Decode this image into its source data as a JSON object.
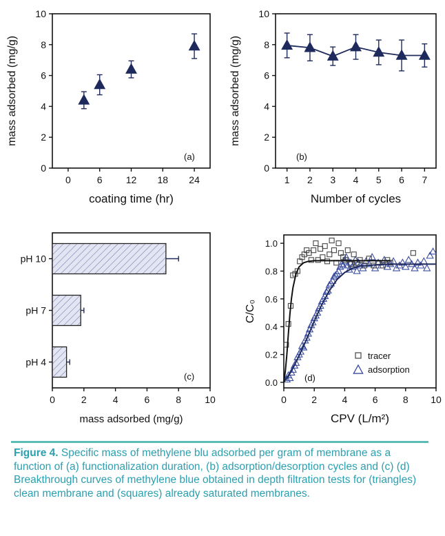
{
  "colors": {
    "series": "#1f2a5c",
    "bar_fill": "#e3e5f3",
    "bar_hatch": "#7a7fb0",
    "caption": "#2a9fb0",
    "rule": "#5bbcb5"
  },
  "chart_data": [
    {
      "type": "scatter",
      "panel_label": "(a)",
      "xlabel": "coating time  (hr)",
      "ylabel": "mass adsorbed  (mg/g)",
      "xlim": [
        -3,
        27
      ],
      "ylim": [
        0,
        10
      ],
      "xticks": [
        0,
        6,
        12,
        18,
        24
      ],
      "yticks": [
        0,
        2,
        4,
        6,
        8,
        10
      ],
      "x": [
        3,
        6,
        12,
        24
      ],
      "y": [
        4.4,
        5.4,
        6.4,
        7.9
      ],
      "err": [
        0.55,
        0.65,
        0.55,
        0.8
      ],
      "marker": "filled-triangle"
    },
    {
      "type": "line",
      "panel_label": "(b)",
      "xlabel": "Number of cycles",
      "ylabel": "mass adsorbed  (mg/g)",
      "xlim": [
        0.5,
        7.5
      ],
      "ylim": [
        0,
        10
      ],
      "xticks": [
        1,
        2,
        3,
        4,
        5,
        6,
        7
      ],
      "yticks": [
        0,
        2,
        4,
        6,
        8,
        10
      ],
      "x": [
        1,
        2,
        3,
        4,
        5,
        6,
        7
      ],
      "y": [
        7.95,
        7.8,
        7.25,
        7.85,
        7.5,
        7.3,
        7.3
      ],
      "err": [
        0.8,
        0.85,
        0.6,
        0.8,
        0.8,
        1.0,
        0.75
      ],
      "marker": "filled-triangle"
    },
    {
      "type": "bar",
      "orientation": "horizontal",
      "panel_label": "(c)",
      "xlabel": "mass adsorbed  (mg/g)",
      "xlim": [
        0,
        10
      ],
      "xticks": [
        0,
        2,
        4,
        6,
        8,
        10
      ],
      "categories": [
        "pH 10",
        "pH 7",
        "pH 4"
      ],
      "values": [
        7.2,
        1.8,
        0.9
      ],
      "err": [
        0.8,
        0.2,
        0.2
      ]
    },
    {
      "type": "scatter",
      "panel_label": "(d)",
      "xlabel": "CPV  (L/m²)",
      "ylabel": "C/C₀",
      "xlim": [
        0,
        10
      ],
      "ylim": [
        -0.04,
        1.06
      ],
      "xticks": [
        0,
        2,
        4,
        6,
        8,
        10
      ],
      "yticks": [
        0.0,
        0.2,
        0.4,
        0.6,
        0.8,
        1.0
      ],
      "legend": [
        "tracer",
        "adsorption"
      ],
      "legend_position": "bottom-right",
      "series": [
        {
          "name": "tracer",
          "marker": "open-square",
          "x": [
            0.15,
            0.3,
            0.45,
            0.6,
            0.75,
            0.9,
            1.05,
            1.2,
            1.35,
            1.5,
            1.65,
            1.8,
            1.95,
            2.1,
            2.25,
            2.4,
            2.55,
            2.7,
            2.85,
            3.0,
            3.15,
            3.3,
            3.45,
            3.6,
            3.75,
            3.9,
            4.05,
            4.2,
            4.4,
            4.6,
            4.8,
            5.0,
            5.3,
            5.6,
            5.9,
            6.2,
            6.5,
            6.8,
            7.0,
            8.5
          ],
          "y": [
            0.27,
            0.42,
            0.55,
            0.77,
            0.78,
            0.8,
            0.87,
            0.9,
            0.92,
            0.95,
            0.93,
            0.88,
            0.95,
            1.0,
            0.88,
            0.96,
            0.9,
            0.98,
            0.87,
            0.92,
            1.02,
            0.95,
            0.86,
            1.0,
            0.93,
            0.9,
            0.88,
            0.95,
            0.85,
            0.92,
            0.86,
            0.88,
            0.84,
            0.89,
            0.84,
            0.86,
            0.84,
            0.88,
            0.86,
            0.93
          ]
        },
        {
          "name": "tracer fit",
          "x": [
            0,
            0.1,
            0.2,
            0.3,
            0.4,
            0.5,
            0.6,
            0.8,
            1.0,
            1.3,
            1.6,
            2.0,
            2.5,
            3.0,
            4.0,
            5.0,
            6.0,
            7.0
          ],
          "y": [
            0.0,
            0.08,
            0.2,
            0.35,
            0.49,
            0.6,
            0.68,
            0.78,
            0.83,
            0.86,
            0.87,
            0.875,
            0.875,
            0.875,
            0.875,
            0.875,
            0.875,
            0.875
          ]
        },
        {
          "name": "adsorption",
          "marker": "open-triangle",
          "x": [
            0.2,
            0.3,
            0.4,
            0.5,
            0.6,
            0.7,
            0.8,
            0.9,
            1.0,
            1.1,
            1.2,
            1.3,
            1.4,
            1.5,
            1.6,
            1.7,
            1.8,
            1.9,
            2.0,
            2.1,
            2.2,
            2.3,
            2.4,
            2.5,
            2.6,
            2.7,
            2.8,
            2.9,
            3.0,
            3.1,
            3.2,
            3.3,
            3.4,
            3.5,
            3.6,
            3.7,
            3.8,
            3.9,
            4.0,
            4.1,
            4.2,
            4.3,
            4.4,
            4.5,
            4.6,
            4.7,
            4.8,
            4.9,
            5.0,
            5.2,
            5.4,
            5.6,
            5.8,
            6.0,
            6.2,
            6.4,
            6.6,
            6.8,
            7.0,
            7.2,
            7.4,
            7.6,
            7.8,
            8.0,
            8.2,
            8.4,
            8.6,
            8.8,
            9.0,
            9.2,
            9.4,
            9.6,
            9.8
          ],
          "y": [
            0.02,
            0.05,
            0.03,
            0.07,
            0.09,
            0.12,
            0.14,
            0.18,
            0.2,
            0.22,
            0.26,
            0.25,
            0.3,
            0.32,
            0.35,
            0.38,
            0.41,
            0.43,
            0.46,
            0.48,
            0.5,
            0.53,
            0.55,
            0.58,
            0.6,
            0.62,
            0.65,
            0.66,
            0.7,
            0.71,
            0.73,
            0.76,
            0.77,
            0.78,
            0.8,
            0.83,
            0.85,
            0.84,
            0.87,
            0.9,
            0.84,
            0.81,
            0.86,
            0.83,
            0.85,
            0.88,
            0.8,
            0.86,
            0.84,
            0.82,
            0.87,
            0.85,
            0.9,
            0.82,
            0.86,
            0.84,
            0.88,
            0.83,
            0.85,
            0.87,
            0.82,
            0.84,
            0.86,
            0.83,
            0.88,
            0.85,
            0.82,
            0.86,
            0.84,
            0.87,
            0.82,
            0.91,
            0.94
          ]
        },
        {
          "name": "adsorption fit",
          "x": [
            0,
            0.5,
            1.0,
            1.5,
            2.0,
            2.5,
            3.0,
            3.5,
            4.0,
            4.5,
            5.0,
            6.0,
            7.0,
            8.0,
            9.0,
            10.0
          ],
          "y": [
            0.0,
            0.08,
            0.19,
            0.31,
            0.44,
            0.56,
            0.66,
            0.74,
            0.79,
            0.82,
            0.835,
            0.845,
            0.85,
            0.85,
            0.85,
            0.85
          ]
        }
      ]
    }
  ],
  "caption": {
    "lead": "Figure 4.",
    "text": " Specific mass of methylene blu adsorbed per gram of membrane as a function of (a) functionalization duration, (b) adsorption/desorption cycles and (c) (d) Breakthrough curves of methylene blue obtained in depth filtration tests for (triangles) clean membrane and (squares) already saturated membranes."
  }
}
